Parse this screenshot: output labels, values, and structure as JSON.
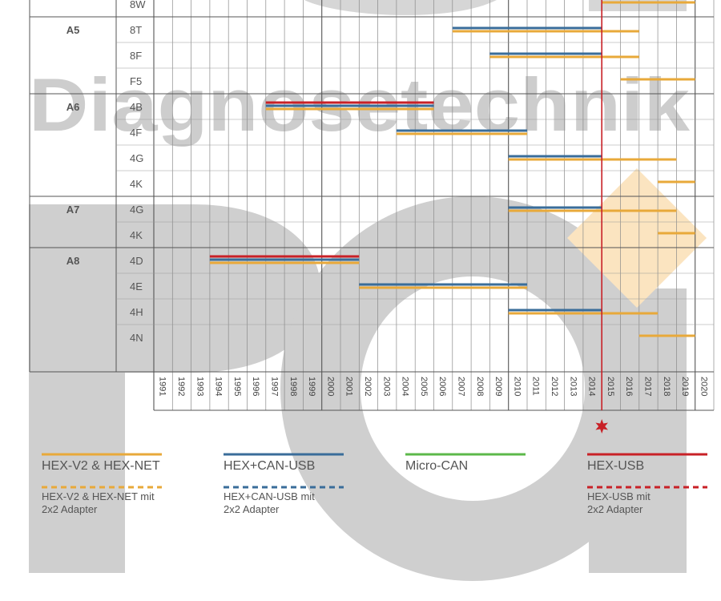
{
  "watermark": {
    "text": "Diagnosetechnik"
  },
  "colors": {
    "hex_v2": "#e8a93a",
    "hex_can_usb": "#3a6d9a",
    "micro_can": "#5cb84a",
    "hex_usb": "#c82127",
    "marker": "#c82127"
  },
  "chart_data": {
    "type": "timeline",
    "title": "",
    "x_range": [
      1991,
      2020
    ],
    "years": [
      "1991",
      "1992",
      "1993",
      "1994",
      "1995",
      "1996",
      "1997",
      "1998",
      "1999",
      "2000",
      "2001",
      "2002",
      "2003",
      "2004",
      "2005",
      "2006",
      "2007",
      "2008",
      "2009",
      "2010",
      "2011",
      "2012",
      "2013",
      "2014",
      "2015",
      "2016",
      "2017",
      "2018",
      "2019",
      "2020"
    ],
    "highlight_year": 2015,
    "groups": [
      {
        "model": "",
        "rows": [
          {
            "code": "8W",
            "bars": [
              {
                "tool": "hex_v2",
                "start": 2015,
                "end": 2020,
                "style": "solid"
              }
            ]
          }
        ]
      },
      {
        "model": "A5",
        "rows": [
          {
            "code": "8T",
            "bars": [
              {
                "tool": "hex_can_usb",
                "start": 2007,
                "end": 2015,
                "style": "solid"
              },
              {
                "tool": "hex_v2",
                "start": 2007,
                "end": 2017,
                "style": "solid"
              }
            ]
          },
          {
            "code": "8F",
            "bars": [
              {
                "tool": "hex_can_usb",
                "start": 2009,
                "end": 2015,
                "style": "solid"
              },
              {
                "tool": "hex_v2",
                "start": 2009,
                "end": 2017,
                "style": "solid"
              }
            ]
          },
          {
            "code": "F5",
            "bars": [
              {
                "tool": "hex_v2",
                "start": 2016,
                "end": 2020,
                "style": "solid"
              }
            ]
          }
        ]
      },
      {
        "model": "A6",
        "rows": [
          {
            "code": "4B",
            "bars": [
              {
                "tool": "hex_usb",
                "start": 1997,
                "end": 2006,
                "style": "solid"
              },
              {
                "tool": "hex_can_usb",
                "start": 1997,
                "end": 2006,
                "style": "solid"
              },
              {
                "tool": "hex_v2",
                "start": 1997,
                "end": 2006,
                "style": "solid"
              }
            ]
          },
          {
            "code": "4F",
            "bars": [
              {
                "tool": "hex_can_usb",
                "start": 2004,
                "end": 2011,
                "style": "solid"
              },
              {
                "tool": "hex_v2",
                "start": 2004,
                "end": 2011,
                "style": "solid"
              }
            ]
          },
          {
            "code": "4G",
            "bars": [
              {
                "tool": "hex_can_usb",
                "start": 2010,
                "end": 2015,
                "style": "solid"
              },
              {
                "tool": "hex_v2",
                "start": 2010,
                "end": 2019,
                "style": "solid"
              }
            ]
          },
          {
            "code": "4K",
            "bars": [
              {
                "tool": "hex_v2",
                "start": 2018,
                "end": 2020,
                "style": "solid"
              }
            ]
          }
        ]
      },
      {
        "model": "A7",
        "rows": [
          {
            "code": "4G",
            "bars": [
              {
                "tool": "hex_can_usb",
                "start": 2010,
                "end": 2015,
                "style": "solid"
              },
              {
                "tool": "hex_v2",
                "start": 2010,
                "end": 2019,
                "style": "solid"
              }
            ]
          },
          {
            "code": "4K",
            "bars": [
              {
                "tool": "hex_v2",
                "start": 2018,
                "end": 2020,
                "style": "solid"
              }
            ]
          }
        ]
      },
      {
        "model": "A8",
        "rows": [
          {
            "code": "4D",
            "bars": [
              {
                "tool": "hex_usb",
                "start": 1994,
                "end": 2002,
                "style": "solid"
              },
              {
                "tool": "hex_can_usb",
                "start": 1994,
                "end": 2002,
                "style": "solid"
              },
              {
                "tool": "hex_v2",
                "start": 1994,
                "end": 2002,
                "style": "solid"
              }
            ]
          },
          {
            "code": "4E",
            "bars": [
              {
                "tool": "hex_can_usb",
                "start": 2002,
                "end": 2011,
                "style": "solid"
              },
              {
                "tool": "hex_v2",
                "start": 2002,
                "end": 2011,
                "style": "solid"
              }
            ]
          },
          {
            "code": "4H",
            "bars": [
              {
                "tool": "hex_can_usb",
                "start": 2010,
                "end": 2015,
                "style": "solid"
              },
              {
                "tool": "hex_v2",
                "start": 2010,
                "end": 2018,
                "style": "solid"
              }
            ]
          },
          {
            "code": "4N",
            "bars": [
              {
                "tool": "hex_v2",
                "start": 2017,
                "end": 2020,
                "style": "solid"
              }
            ]
          }
        ]
      }
    ],
    "legend": [
      {
        "tool": "hex_v2",
        "label": "HEX-V2 & HEX-NET",
        "sub_label": "HEX-V2 & HEX-NET mit 2x2 Adapter"
      },
      {
        "tool": "hex_can_usb",
        "label": "HEX+CAN-USB",
        "sub_label": "HEX+CAN-USB mit 2x2 Adapter"
      },
      {
        "tool": "micro_can",
        "label": "Micro-CAN",
        "sub_label": ""
      },
      {
        "tool": "hex_usb",
        "label": "HEX-USB",
        "sub_label": "HEX-USB mit 2x2 Adapter"
      }
    ]
  }
}
